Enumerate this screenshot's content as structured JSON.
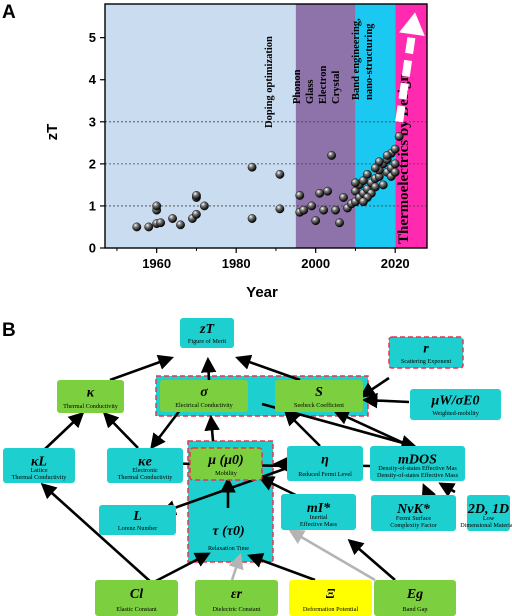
{
  "panels": {
    "a_label": "A",
    "b_label": "B"
  },
  "chart_data": {
    "type": "scatter",
    "xlabel": "Year",
    "ylabel": "zT",
    "xlim": [
      1947,
      2028
    ],
    "ylim": [
      0,
      5.8
    ],
    "x_ticks": [
      "1960",
      "1980",
      "2000",
      "2020"
    ],
    "y_ticks": [
      "0",
      "1",
      "2",
      "3",
      "4",
      "5"
    ],
    "grid": "dashed lines at zT = 1, 2, 3",
    "eras": [
      {
        "label": "Doping optimization",
        "from": 1947,
        "to": 1995,
        "color": "#cadcf0"
      },
      {
        "label": "Phonon Glass Electron Crystal",
        "from": 1995,
        "to": 2010,
        "color": "#8e73aa"
      },
      {
        "label": "Band engineering, nano-structuring",
        "from": 2010,
        "to": 2020,
        "color": "#1ac8f2"
      },
      {
        "label": "Thermoelectrics by Design",
        "from": 2020,
        "to": 2028,
        "color": "#ff2ab0"
      }
    ],
    "points": [
      {
        "x": 1955,
        "y": 0.5
      },
      {
        "x": 1958,
        "y": 0.5
      },
      {
        "x": 1960,
        "y": 0.58
      },
      {
        "x": 1960,
        "y": 0.9
      },
      {
        "x": 1960,
        "y": 1.0
      },
      {
        "x": 1961,
        "y": 0.6
      },
      {
        "x": 1964,
        "y": 0.7
      },
      {
        "x": 1966,
        "y": 0.55
      },
      {
        "x": 1969,
        "y": 0.7
      },
      {
        "x": 1970,
        "y": 0.8
      },
      {
        "x": 1970,
        "y": 1.2
      },
      {
        "x": 1970,
        "y": 1.25
      },
      {
        "x": 1972,
        "y": 1.0
      },
      {
        "x": 1984,
        "y": 0.7
      },
      {
        "x": 1984,
        "y": 1.92
      },
      {
        "x": 1991,
        "y": 0.93
      },
      {
        "x": 1991,
        "y": 1.75
      },
      {
        "x": 1996,
        "y": 0.85
      },
      {
        "x": 1996,
        "y": 1.25
      },
      {
        "x": 1997,
        "y": 0.9
      },
      {
        "x": 1999,
        "y": 1.0
      },
      {
        "x": 2000,
        "y": 0.65
      },
      {
        "x": 2001,
        "y": 1.3
      },
      {
        "x": 2002,
        "y": 0.9
      },
      {
        "x": 2003,
        "y": 1.35
      },
      {
        "x": 2004,
        "y": 2.2
      },
      {
        "x": 2005,
        "y": 0.9
      },
      {
        "x": 2006,
        "y": 0.6
      },
      {
        "x": 2007,
        "y": 1.2
      },
      {
        "x": 2008,
        "y": 0.95
      },
      {
        "x": 2009,
        "y": 1.05
      },
      {
        "x": 2010,
        "y": 1.1
      },
      {
        "x": 2010,
        "y": 1.35
      },
      {
        "x": 2011,
        "y": 1.2
      },
      {
        "x": 2011,
        "y": 1.5
      },
      {
        "x": 2012,
        "y": 1.3
      },
      {
        "x": 2012,
        "y": 1.6
      },
      {
        "x": 2013,
        "y": 1.4
      },
      {
        "x": 2013,
        "y": 1.75
      },
      {
        "x": 2014,
        "y": 1.55
      },
      {
        "x": 2014,
        "y": 1.3
      },
      {
        "x": 2015,
        "y": 1.65
      },
      {
        "x": 2015,
        "y": 1.45
      },
      {
        "x": 2016,
        "y": 1.7
      },
      {
        "x": 2016,
        "y": 1.85
      },
      {
        "x": 2017,
        "y": 1.5
      },
      {
        "x": 2017,
        "y": 2.0
      },
      {
        "x": 2018,
        "y": 1.8
      },
      {
        "x": 2018,
        "y": 2.1
      },
      {
        "x": 2019,
        "y": 1.9
      },
      {
        "x": 2019,
        "y": 2.25
      },
      {
        "x": 2020,
        "y": 2.0
      },
      {
        "x": 2020,
        "y": 2.35
      },
      {
        "x": 2021,
        "y": 2.65
      },
      {
        "x": 2018,
        "y": 2.2
      },
      {
        "x": 2016,
        "y": 2.05
      },
      {
        "x": 2015,
        "y": 1.9
      },
      {
        "x": 2013,
        "y": 1.2
      },
      {
        "x": 2012,
        "y": 1.1
      },
      {
        "x": 2010,
        "y": 1.55
      },
      {
        "x": 2019,
        "y": 1.7
      },
      {
        "x": 2020,
        "y": 1.8
      }
    ],
    "trend_arrow": {
      "from": [
        2021,
        3.0
      ],
      "to": [
        2025,
        5.6
      ]
    }
  },
  "diagram": {
    "nodes": [
      {
        "id": "zT",
        "sym": "zT",
        "label": "Figure of Merit",
        "fill": "#1ecfcf"
      },
      {
        "id": "r",
        "sym": "r",
        "label": "Scattering Exponent",
        "fill": "#1ecfcf",
        "dashed": true
      },
      {
        "id": "kappa",
        "sym": "κ",
        "label": "Thermal Conductivity",
        "fill": "#7ccf3f"
      },
      {
        "id": "sigma",
        "sym": "σ",
        "label": "Electrical Conductivity",
        "fill": "#7ccf3f"
      },
      {
        "id": "S",
        "sym": "S",
        "label": "Seebeck Coefficient",
        "fill": "#7ccf3f"
      },
      {
        "id": "muw",
        "sym": "μW/σE0",
        "label": "Weighted-mobility",
        "fill": "#1ecfcf"
      },
      {
        "id": "kL",
        "sym": "κL",
        "label": "Lattice Thermal Conductivity",
        "fill": "#1ecfcf"
      },
      {
        "id": "ke",
        "sym": "κe",
        "label": "Electronic Thermal Conductivity",
        "fill": "#1ecfcf"
      },
      {
        "id": "mu",
        "sym": "μ (μ0)",
        "label": "Mobility",
        "fill": "#7ccf3f",
        "dashed": true
      },
      {
        "id": "eta",
        "sym": "η",
        "label": "Reduced Fermi Level",
        "fill": "#1ecfcf"
      },
      {
        "id": "mdos",
        "sym": "mDOS",
        "label": "Density-of-states Effective Mass",
        "fill": "#1ecfcf"
      },
      {
        "id": "L",
        "sym": "L",
        "label": "Lorenz Number",
        "fill": "#1ecfcf"
      },
      {
        "id": "mI",
        "sym": "mI*",
        "label": "Inertial Effective Mass",
        "fill": "#1ecfcf"
      },
      {
        "id": "NvK",
        "sym": "NvK*",
        "label": "Fermi Surface Complexity Factor",
        "fill": "#1ecfcf"
      },
      {
        "id": "dim",
        "sym": "2D, 1D",
        "label": "Low Dimensional Materials",
        "fill": "#1ecfcf"
      },
      {
        "id": "tau",
        "sym": "τ (τ0)",
        "label": "Relaxation Time",
        "fill": "#1ecfcf"
      },
      {
        "id": "Cl",
        "sym": "Cl",
        "label": "Elastic Constant",
        "fill": "#7ccf3f"
      },
      {
        "id": "er",
        "sym": "εr",
        "label": "Dielectric Constant",
        "fill": "#7ccf3f"
      },
      {
        "id": "Xi",
        "sym": "Ξ",
        "label": "Deformation Potential",
        "fill": "#ffff00"
      },
      {
        "id": "Eg",
        "sym": "Eg",
        "label": "Band Gap",
        "fill": "#7ccf3f"
      }
    ]
  },
  "colors": {
    "dash_border": "#e8334a",
    "arrow": "#000000",
    "gray_arrow": "#b4b4b4"
  }
}
